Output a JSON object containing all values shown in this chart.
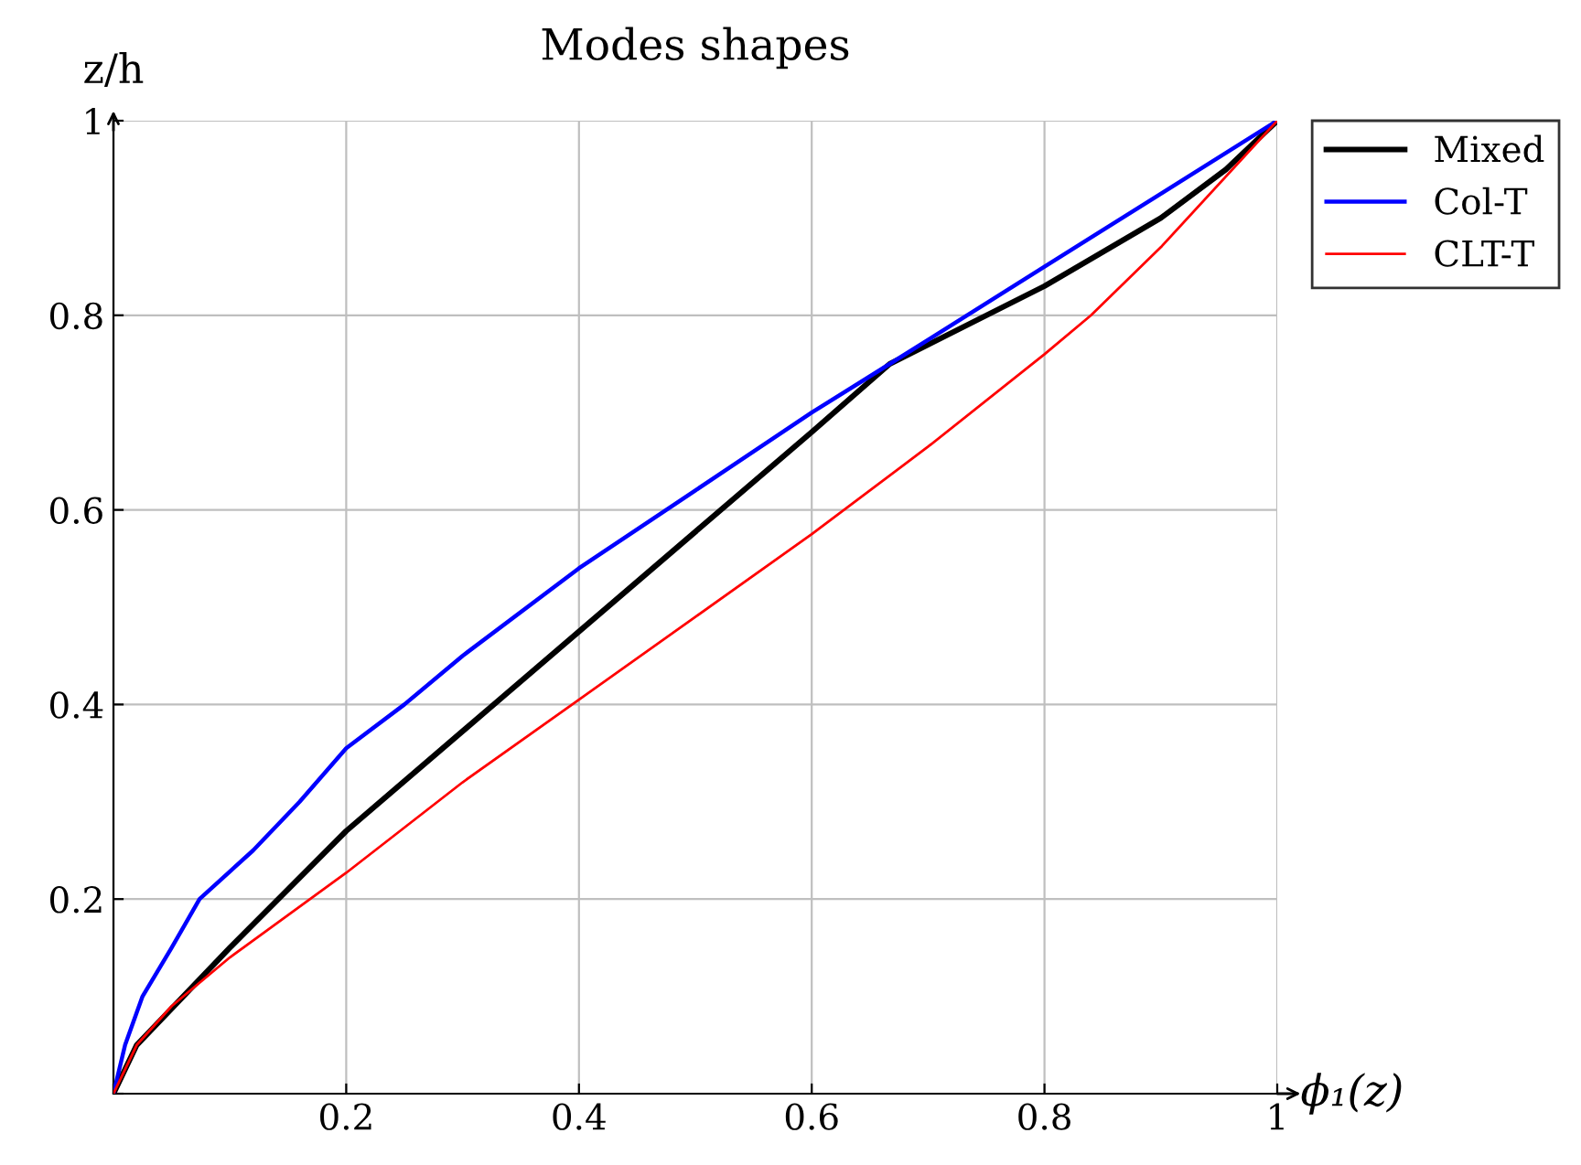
{
  "chart_data": {
    "type": "line",
    "title": "Modes shapes",
    "xlabel": "ϕ₁(z)",
    "ylabel": "z/h",
    "series": [
      {
        "name": "Mixed",
        "color": "#000000",
        "x": [
          0,
          0.02,
          0.06,
          0.1,
          0.2,
          0.4,
          0.6,
          0.667,
          0.8,
          0.9,
          0.956,
          1
        ],
        "values": [
          0,
          0.05,
          0.1,
          0.15,
          0.27,
          0.475,
          0.68,
          0.75,
          0.83,
          0.9,
          0.95,
          1
        ]
      },
      {
        "name": "Col-T",
        "color": "#0000ff",
        "x": [
          0,
          0.01,
          0.025,
          0.05,
          0.074,
          0.12,
          0.16,
          0.2,
          0.25,
          0.3,
          0.4,
          0.5,
          0.6,
          0.667,
          0.8,
          0.9,
          1
        ],
        "values": [
          0,
          0.05,
          0.1,
          0.15,
          0.2,
          0.25,
          0.3,
          0.355,
          0.4,
          0.45,
          0.54,
          0.62,
          0.7,
          0.75,
          0.85,
          0.925,
          1
        ]
      },
      {
        "name": "CLT-T",
        "color": "#ff0000",
        "x": [
          0,
          0.02,
          0.05,
          0.1,
          0.2,
          0.3,
          0.4,
          0.5,
          0.6,
          0.7,
          0.8,
          0.84,
          0.9,
          1
        ],
        "values": [
          0,
          0.05,
          0.09,
          0.14,
          0.227,
          0.32,
          0.405,
          0.49,
          0.575,
          0.665,
          0.76,
          0.8,
          0.87,
          1
        ]
      }
    ],
    "xlim": [
      0,
      1
    ],
    "ylim": [
      0,
      1
    ],
    "xticks": [
      {
        "value": 0,
        "label": null
      },
      0.2,
      0.4,
      0.6,
      0.8,
      1
    ],
    "yticks": [
      {
        "value": 0,
        "label": null
      },
      0.2,
      0.4,
      0.6,
      0.8,
      1
    ],
    "grid": true,
    "legend": "top right",
    "marker": "none",
    "line_style": "solid"
  }
}
